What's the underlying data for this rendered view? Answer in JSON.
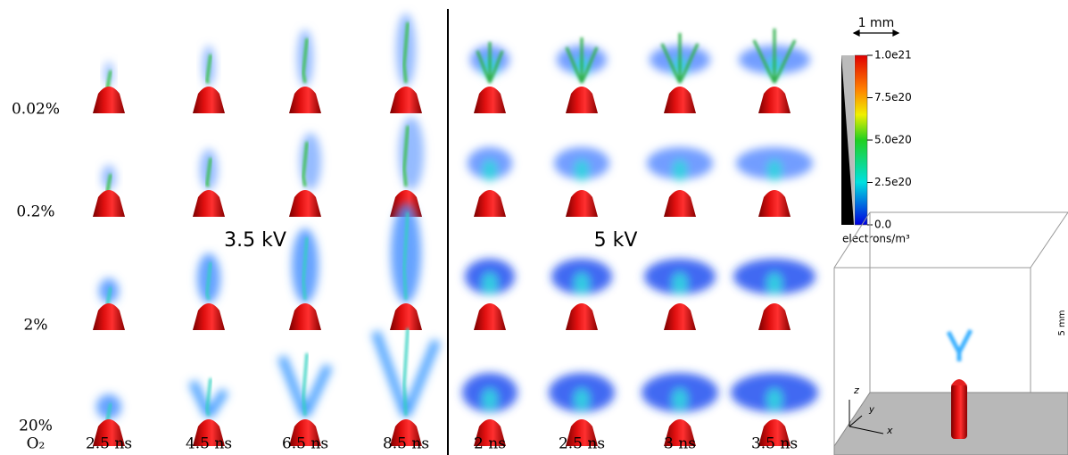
{
  "row_labels": [
    "0.02%",
    "0.2%",
    "2%",
    "20%"
  ],
  "gas_label": "O₂",
  "time_labels_left": [
    "2.5 ns",
    "4.5 ns",
    "6.5 ns",
    "8.5 ns"
  ],
  "time_labels_right": [
    "2 ns",
    "2.5 ns",
    "3 ns",
    "3.5 ns"
  ],
  "voltage_left": "3.5 kV",
  "voltage_right": "5 kV",
  "scale_bar": "1 mm",
  "colorbar": {
    "ticks": [
      "1.0e21",
      "7.5e20",
      "5.0e20",
      "2.5e20",
      "0.0"
    ],
    "unit": "electrons/m³"
  },
  "inset": {
    "height_label": "5 mm",
    "axes": [
      "z",
      "y",
      "x"
    ]
  }
}
